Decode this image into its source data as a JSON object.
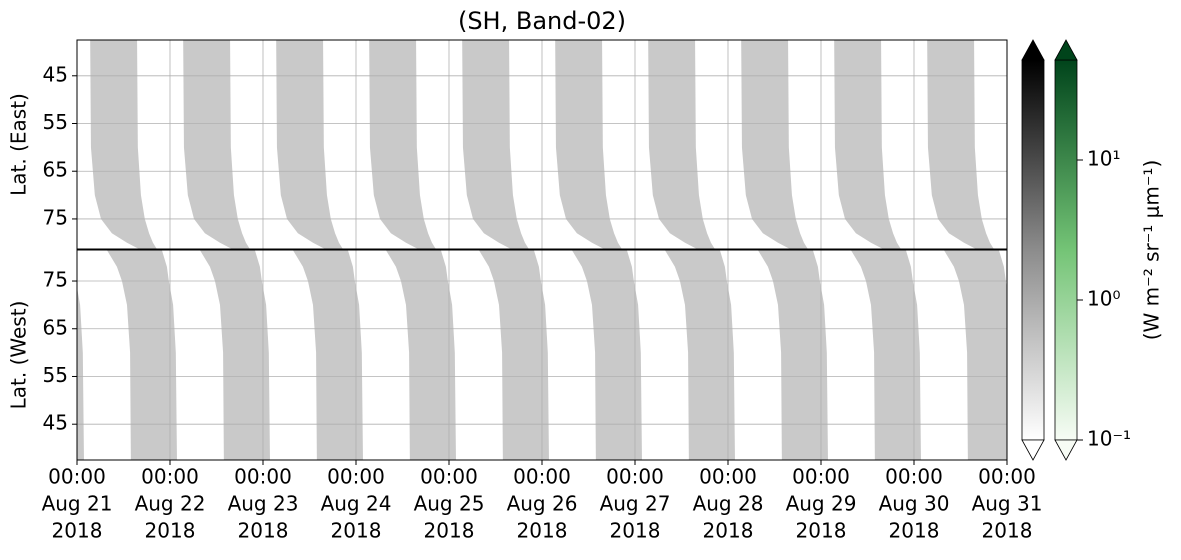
{
  "chart_data": {
    "type": "swath",
    "title": "(SH, Band-02)",
    "xlim": [
      "2018-08-21 00:00",
      "2018-08-31 00:00"
    ],
    "xticks": [
      {
        "value": "2018-08-21 00:00",
        "label": [
          "00:00",
          "Aug 21",
          "2018"
        ]
      },
      {
        "value": "2018-08-22 00:00",
        "label": [
          "00:00",
          "Aug 22",
          "2018"
        ]
      },
      {
        "value": "2018-08-23 00:00",
        "label": [
          "00:00",
          "Aug 23",
          "2018"
        ]
      },
      {
        "value": "2018-08-24 00:00",
        "label": [
          "00:00",
          "Aug 24",
          "2018"
        ]
      },
      {
        "value": "2018-08-25 00:00",
        "label": [
          "00:00",
          "Aug 25",
          "2018"
        ]
      },
      {
        "value": "2018-08-26 00:00",
        "label": [
          "00:00",
          "Aug 26",
          "2018"
        ]
      },
      {
        "value": "2018-08-27 00:00",
        "label": [
          "00:00",
          "Aug 27",
          "2018"
        ]
      },
      {
        "value": "2018-08-28 00:00",
        "label": [
          "00:00",
          "Aug 28",
          "2018"
        ]
      },
      {
        "value": "2018-08-29 00:00",
        "label": [
          "00:00",
          "Aug 29",
          "2018"
        ]
      },
      {
        "value": "2018-08-30 00:00",
        "label": [
          "00:00",
          "Aug 30",
          "2018"
        ]
      },
      {
        "value": "2018-08-31 00:00",
        "label": [
          "00:00",
          "Aug 31",
          "2018"
        ]
      }
    ],
    "grid": true,
    "panels": [
      {
        "ylabel": "Lat. (East)",
        "ylim": [
          81.3,
          37.5
        ],
        "yticks": [
          45,
          55,
          65,
          75
        ],
        "swath": {
          "value": 1,
          "color": "#c9c9c9",
          "lat": [
            37.5,
            60,
            70,
            75,
            78,
            80,
            81.3
          ],
          "start_hour": [
            3.4,
            3.6,
            4.6,
            6.2,
            9.0,
            12.9,
            16.0
          ],
          "end_hour": [
            15.5,
            15.7,
            16.5,
            17.5,
            18.6,
            19.6,
            20.6
          ]
        }
      },
      {
        "ylabel": "Lat. (West)",
        "ylim": [
          37.5,
          81.5
        ],
        "yticks": [
          45,
          55,
          65,
          75
        ],
        "swath": {
          "value": 1,
          "color": "#c9c9c9",
          "lat": [
            37.5,
            60,
            70,
            75,
            78,
            81.5
          ],
          "start_hour": [
            13.9,
            13.7,
            12.9,
            11.6,
            10.3,
            7.7
          ],
          "end_hour": [
            25.8,
            25.5,
            24.8,
            23.7,
            23.2,
            21.9
          ]
        }
      }
    ],
    "colorbar": {
      "log": true,
      "clim": [
        0.1,
        51.8
      ],
      "ticks": [
        {
          "value": 0.1,
          "label": "10⁻¹"
        },
        {
          "value": 1,
          "label": "10⁰"
        },
        {
          "value": 10,
          "label": "10¹"
        }
      ],
      "label": "(W m⁻² sr⁻¹ μm⁻¹)",
      "cmaps": [
        [
          "#ffffff",
          "#8c8c8c",
          "#000000"
        ],
        [
          "#f7fcf5",
          "#74c476",
          "#00441b"
        ]
      ]
    }
  }
}
